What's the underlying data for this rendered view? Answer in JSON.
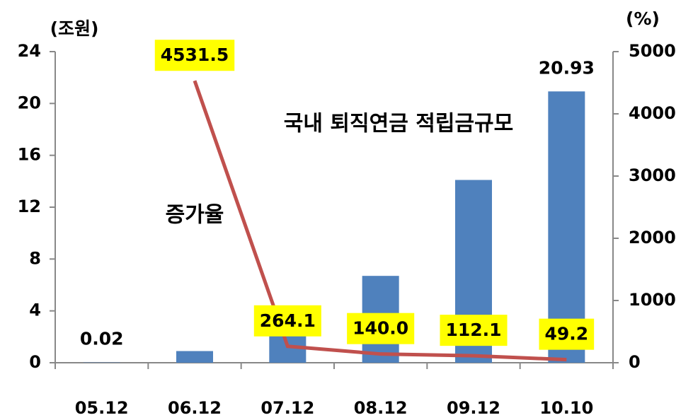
{
  "chart_data": {
    "type": "bar-line",
    "y_label": "(조원)",
    "y2_label": "(%)",
    "annotations": [
      "국내 퇴직연금 적립금규모",
      "증가율"
    ],
    "categories": [
      "05.12",
      "06.12",
      "07.12",
      "08.12",
      "09.12",
      "10.10"
    ],
    "series": [
      {
        "name": "국내 퇴직연금 적립금규모",
        "type": "bar",
        "color": "#4f81bd",
        "values": [
          0.02,
          0.9,
          2.8,
          6.7,
          14.1,
          20.93
        ],
        "value_labels": [
          "0.02",
          null,
          null,
          null,
          null,
          "20.93"
        ]
      },
      {
        "name": "증가율",
        "type": "line",
        "axis": "y2",
        "color": "#c0504d",
        "values": [
          null,
          4531.5,
          264.1,
          140.0,
          112.1,
          49.2
        ],
        "value_labels": [
          null,
          "4531.5",
          "264.1",
          "140.0",
          "112.1",
          "49.2"
        ],
        "label_box_color": "#ffff00"
      }
    ],
    "ylim": [
      0,
      24
    ],
    "yticks": [
      0,
      4,
      8,
      12,
      16,
      20,
      24
    ],
    "y2lim": [
      0,
      5000
    ],
    "y2ticks": [
      0,
      1000,
      2000,
      3000,
      4000,
      5000
    ],
    "grid": false
  }
}
